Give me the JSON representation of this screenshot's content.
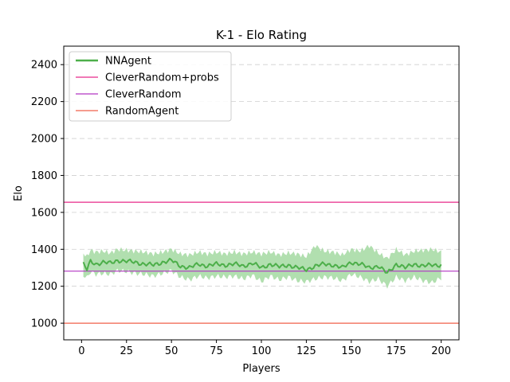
{
  "chart_data": {
    "type": "line",
    "title": "K-1 - Elo Rating",
    "xlabel": "Players",
    "ylabel": "Elo",
    "xlim": [
      -9.9,
      209.9
    ],
    "ylim": [
      910,
      2500
    ],
    "xticks": [
      0,
      25,
      50,
      75,
      100,
      125,
      150,
      175,
      200
    ],
    "yticks": [
      1000,
      1200,
      1400,
      1600,
      1800,
      2000,
      2200,
      2400
    ],
    "grid": "y-dashed",
    "legend_position": "top-left",
    "series": [
      {
        "name": "NNAgent",
        "kind": "line-with-band",
        "color": "#4daf4a",
        "band_color": "#a9dba6",
        "x_start": 1,
        "x_end": 200,
        "anchors_x": [
          1,
          3,
          5,
          8,
          12,
          16,
          20,
          25,
          30,
          35,
          40,
          45,
          50,
          55,
          60,
          65,
          70,
          75,
          80,
          85,
          90,
          95,
          100,
          105,
          110,
          115,
          120,
          125,
          130,
          135,
          140,
          145,
          150,
          155,
          160,
          165,
          170,
          175,
          180,
          185,
          190,
          195,
          200
        ],
        "anchors_mean": [
          1320,
          1290,
          1335,
          1320,
          1330,
          1325,
          1340,
          1335,
          1330,
          1320,
          1315,
          1330,
          1340,
          1310,
          1300,
          1320,
          1310,
          1320,
          1315,
          1320,
          1310,
          1325,
          1300,
          1320,
          1305,
          1315,
          1300,
          1290,
          1310,
          1320,
          1315,
          1300,
          1330,
          1320,
          1300,
          1310,
          1270,
          1320,
          1300,
          1320,
          1310,
          1315,
          1315
        ],
        "anchors_upper": [
          1380,
          1360,
          1395,
          1385,
          1390,
          1380,
          1400,
          1395,
          1390,
          1385,
          1375,
          1385,
          1400,
          1375,
          1370,
          1385,
          1375,
          1385,
          1375,
          1385,
          1375,
          1385,
          1375,
          1385,
          1370,
          1380,
          1375,
          1360,
          1420,
          1390,
          1385,
          1370,
          1400,
          1390,
          1420,
          1380,
          1350,
          1400,
          1370,
          1390,
          1395,
          1400,
          1385
        ],
        "anchors_lower": [
          1260,
          1245,
          1280,
          1265,
          1270,
          1265,
          1285,
          1280,
          1270,
          1265,
          1255,
          1270,
          1285,
          1250,
          1235,
          1255,
          1245,
          1255,
          1250,
          1255,
          1240,
          1260,
          1225,
          1255,
          1235,
          1250,
          1230,
          1225,
          1240,
          1250,
          1245,
          1230,
          1265,
          1250,
          1225,
          1240,
          1200,
          1250,
          1230,
          1250,
          1230,
          1220,
          1245
        ]
      },
      {
        "name": "CleverRandom+probs",
        "kind": "hline",
        "value": 1655,
        "color": "#e7298a"
      },
      {
        "name": "CleverRandom",
        "kind": "hline",
        "value": 1282,
        "color": "#b234c2"
      },
      {
        "name": "RandomAgent",
        "kind": "hline",
        "value": 1000,
        "color": "#f0604a"
      }
    ]
  }
}
